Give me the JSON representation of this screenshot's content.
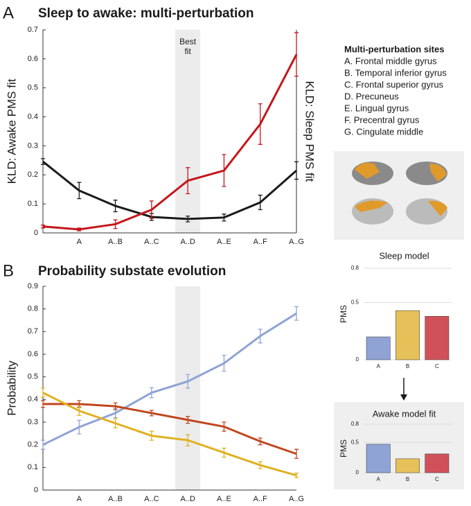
{
  "chart_data": [
    {
      "type": "line",
      "panel": "A",
      "title": "Sleep to awake: multi-perturbation",
      "ylabel": "KLD: Awake PMS fit",
      "y2label": "KLD: Sleep PMS fit",
      "annotation": "Best fit",
      "categories": [
        null,
        "A",
        "A..B",
        "A..C",
        "A..D",
        "A..E",
        "A..F",
        "A..G"
      ],
      "ylim": [
        0,
        0.7
      ],
      "yticks": [
        0,
        0.1,
        0.2,
        0.3,
        0.4,
        0.5,
        0.6,
        0.7
      ],
      "series": [
        {
          "name": "KLD: Awake PMS fit",
          "color": "#1a1a1a",
          "values": [
            0.246,
            0.146,
            0.093,
            0.055,
            0.048,
            0.053,
            0.105,
            0.215
          ],
          "errors": [
            0.01,
            0.028,
            0.02,
            0.012,
            0.01,
            0.012,
            0.025,
            0.03
          ]
        },
        {
          "name": "KLD: Sleep PMS fit",
          "color": "#c4161c",
          "values": [
            0.022,
            0.012,
            0.03,
            0.08,
            0.18,
            0.215,
            0.375,
            0.615
          ],
          "errors": [
            0.005,
            0.005,
            0.015,
            0.03,
            0.045,
            0.055,
            0.07,
            0.075
          ]
        }
      ],
      "sites_title": "Multi-perturbation sites",
      "sites": [
        {
          "label": "A. Frontal middle gyrus",
          "color": "#e0952a"
        },
        {
          "label": "B. Temporal inferior gyrus",
          "color": "#e0952a"
        },
        {
          "label": "C. Frontal superior gyrus",
          "color": "#e0952a"
        },
        {
          "label": "D. Precuneus",
          "color": "#e0952a"
        },
        {
          "label": "E. Lingual gyrus",
          "color": "#1a1a1a"
        },
        {
          "label": "F. Precentral gyrus",
          "color": "#1a1a1a"
        },
        {
          "label": "G. Cingulate middle",
          "color": "#1a1a1a"
        }
      ]
    },
    {
      "type": "line",
      "panel": "B",
      "title": "Probability substate evolution",
      "ylabel": "Probability",
      "categories": [
        null,
        "A",
        "A..B",
        "A..C",
        "A..D",
        "A..E",
        "A..F",
        "A..G"
      ],
      "ylim": [
        0,
        0.9
      ],
      "yticks": [
        0,
        0.1,
        0.2,
        0.3,
        0.4,
        0.5,
        0.6,
        0.7,
        0.8,
        0.9
      ],
      "series": [
        {
          "color": "#8fa3d4",
          "values": [
            0.2,
            0.278,
            0.34,
            0.43,
            0.48,
            0.56,
            0.68,
            0.78
          ],
          "errors": [
            0.02,
            0.03,
            0.02,
            0.022,
            0.03,
            0.035,
            0.03,
            0.03
          ]
        },
        {
          "color": "#c0461f",
          "values": [
            0.38,
            0.38,
            0.37,
            0.34,
            0.31,
            0.28,
            0.215,
            0.16
          ],
          "errors": [
            0.015,
            0.015,
            0.015,
            0.012,
            0.015,
            0.02,
            0.015,
            0.02
          ]
        },
        {
          "color": "#e0b020",
          "values": [
            0.43,
            0.35,
            0.295,
            0.24,
            0.22,
            0.165,
            0.11,
            0.065
          ],
          "errors": [
            0.02,
            0.02,
            0.02,
            0.02,
            0.025,
            0.02,
            0.015,
            0.01
          ]
        }
      ]
    },
    {
      "type": "bar",
      "title": "Sleep model",
      "ylabel": "PMS",
      "categories": [
        "A",
        "B",
        "C"
      ],
      "values": [
        0.2,
        0.43,
        0.38
      ],
      "colors": [
        "#8fa3d4",
        "#e6c15a",
        "#d1515a"
      ],
      "ylim": [
        0,
        0.8
      ],
      "yticks": [
        0,
        0.5,
        0.8
      ],
      "grid": true
    },
    {
      "type": "bar",
      "title": "Awake model fit",
      "ylabel": "PMS",
      "categories": [
        "A",
        "B",
        "C"
      ],
      "values": [
        0.47,
        0.23,
        0.31
      ],
      "colors": [
        "#8fa3d4",
        "#e6c15a",
        "#d1515a"
      ],
      "ylim": [
        0,
        0.8
      ],
      "yticks": [
        0,
        0.5,
        0.8
      ],
      "grid": true
    }
  ]
}
